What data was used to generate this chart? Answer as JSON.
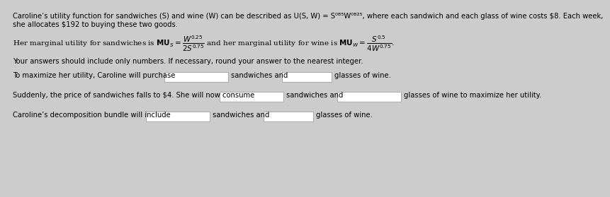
{
  "bg_color": "#cccccc",
  "text_color": "#000000",
  "line1": "Caroline’s utility function for sandwiches (S) and wine (W) can be described as U(S, W) = S⁰.⁵W⁰.²⁵, where each sandwich and each glass of wine costs $8. Each week,",
  "line2": "she allocates $192 to buying these two goods.",
  "note_line": "Your answers should include only numbers. If necessary, round your answer to the nearest integer.",
  "q1_pre": "To maximize her utility, Caroline will purchase",
  "q1_mid": "sandwiches and",
  "q1_post": "glasses of wine.",
  "q2_pre": "Suddenly, the price of sandwiches falls to $4. She will now consume",
  "q2_mid": "sandwiches and",
  "q2_post": "glasses of wine to maximize her utility.",
  "q3_pre": "Caroline’s decomposition bundle will include",
  "q3_mid": "sandwiches and",
  "q3_post": "glasses of wine.",
  "font_size": 7.2,
  "font_size_mu": 7.5
}
